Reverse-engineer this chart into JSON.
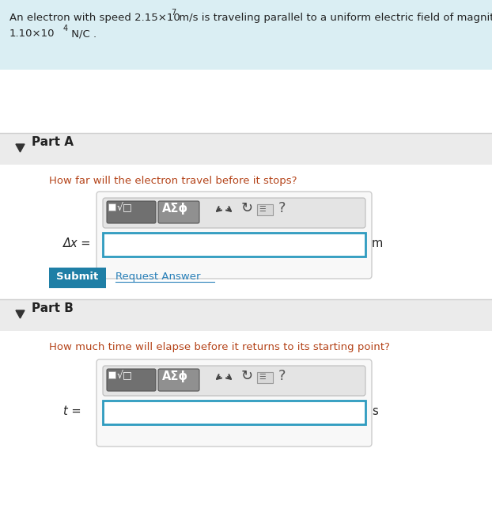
{
  "bg_color": "#ffffff",
  "header_bg": "#daeef3",
  "part_header_bg": "#ebebeb",
  "question_color": "#b5451b",
  "text_color": "#222222",
  "link_color": "#2980b9",
  "submit_bg": "#1f7fa6",
  "input_border": "#2e9bbf",
  "toolbar_bg_outer": "#e8e8e8",
  "math_btn_bg": "#707070",
  "asigma_btn_bg": "#909090",
  "part_a_label": "Part A",
  "part_b_label": "Part B",
  "part_a_question": "How far will the electron travel before it stops?",
  "part_b_question": "How much time will elapse before it returns to its starting point?",
  "part_a_var": "Δx =",
  "part_a_unit": "m",
  "part_b_var": "t =",
  "part_b_unit": "s",
  "submit_text": "Submit",
  "request_text": "Request Answer",
  "toolbar_text": "AΣϕ"
}
